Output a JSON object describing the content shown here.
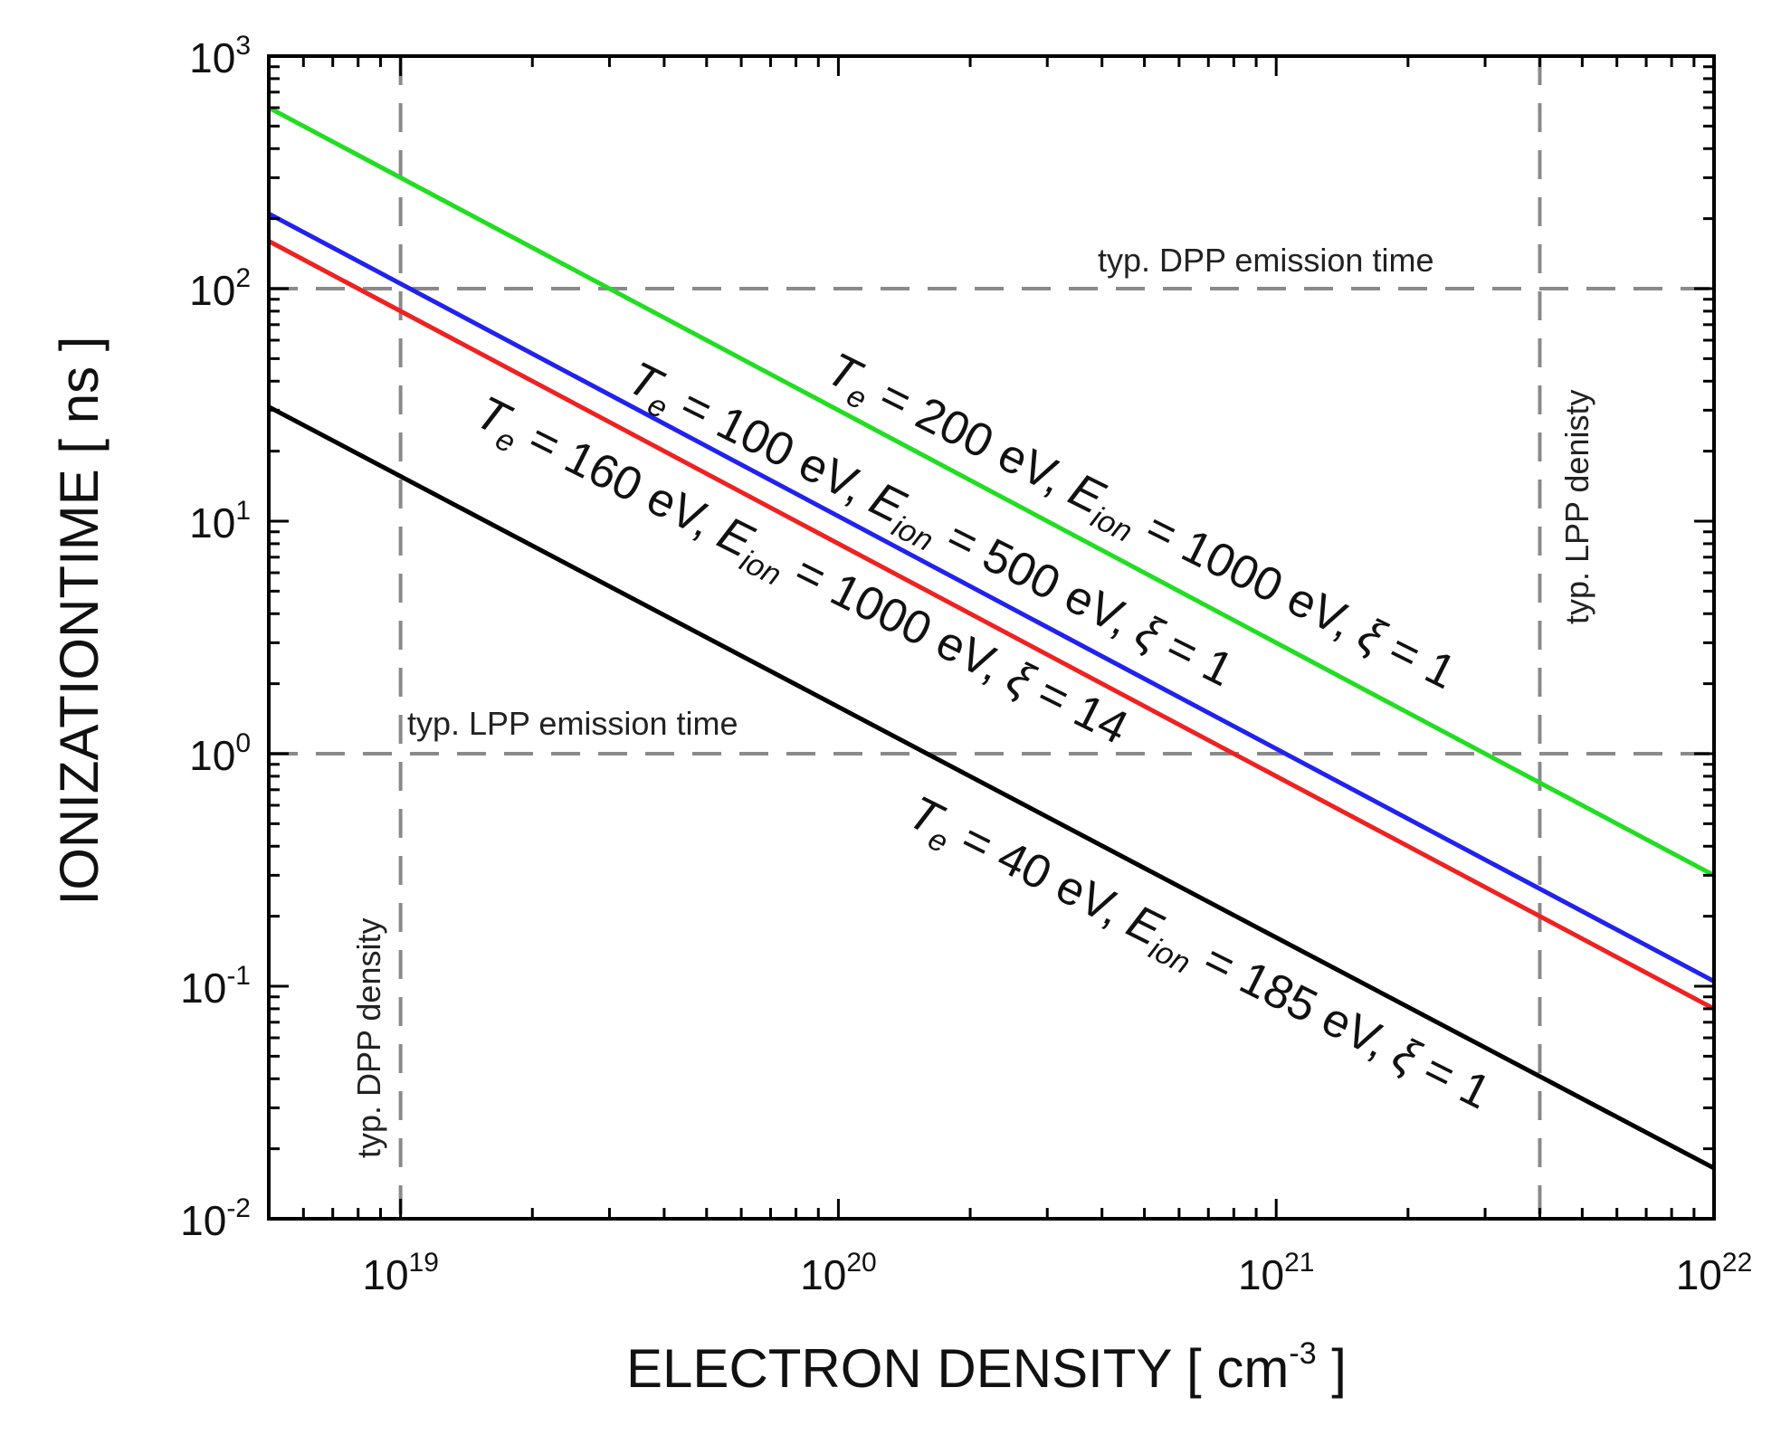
{
  "chart_data": {
    "type": "line",
    "scale": {
      "x": "log",
      "y": "log"
    },
    "xlabel": {
      "text": "ELECTRON DENSITY [ cm",
      "exponent": "-3",
      "suffix": " ]"
    },
    "ylabel": "IONIZATIONTIME [ ns ]",
    "xlim": [
      5e+18,
      1e+22
    ],
    "ylim": [
      0.01,
      1000
    ],
    "x_ticks": [
      {
        "value": 1e+19,
        "base": "10",
        "exp": "19"
      },
      {
        "value": 1e+20,
        "base": "10",
        "exp": "20"
      },
      {
        "value": 1e+21,
        "base": "10",
        "exp": "21"
      },
      {
        "value": 1e+22,
        "base": "10",
        "exp": "22"
      }
    ],
    "y_ticks": [
      {
        "value": 0.01,
        "base": "10",
        "exp": "-2"
      },
      {
        "value": 0.1,
        "base": "10",
        "exp": "-1"
      },
      {
        "value": 1,
        "base": "10",
        "exp": "0"
      },
      {
        "value": 10,
        "base": "10",
        "exp": "1"
      },
      {
        "value": 100,
        "base": "10",
        "exp": "2"
      },
      {
        "value": 1000,
        "base": "10",
        "exp": "3"
      }
    ],
    "series": [
      {
        "name": "Te = 200 eV, Eion = 1000 eV, xi = 1",
        "color": "#22dd22",
        "x": [
          5e+18,
          1e+22
        ],
        "y": [
          600,
          0.3
        ],
        "label": {
          "T": "T",
          "Tsub": "e",
          "t1": " = 200 eV, ",
          "E": "E",
          "Esub": "ion",
          "t2": " = 1000 eV, ",
          "xi": "ξ",
          "t3": " = 1"
        }
      },
      {
        "name": "Te = 100 eV, Eion = 500 eV, xi = 1",
        "color": "#2222ee",
        "x": [
          5e+18,
          1e+22
        ],
        "y": [
          210,
          0.105
        ],
        "label": {
          "T": "T",
          "Tsub": "e",
          "t1": " = 100 eV, ",
          "E": "E",
          "Esub": "ion",
          "t2": " = 500 eV, ",
          "xi": "ξ",
          "t3": " = 1"
        }
      },
      {
        "name": "Te = 160 eV, Eion = 1000 eV, xi = 14",
        "color": "#ee2222",
        "x": [
          5e+18,
          1e+22
        ],
        "y": [
          160,
          0.08
        ],
        "label": {
          "T": "T",
          "Tsub": "e",
          "t1": " = 160 eV, ",
          "E": "E",
          "Esub": "ion",
          "t2": " = 1000 eV, ",
          "xi": "ξ",
          "t3": " = 14"
        }
      },
      {
        "name": "Te = 40 eV, Eion = 185 eV, xi = 1",
        "color": "#000000",
        "x": [
          5e+18,
          1e+22
        ],
        "y": [
          31,
          0.0165
        ],
        "label": {
          "T": "T",
          "Tsub": "e",
          "t1": " = 40 eV, ",
          "E": "E",
          "Esub": "ion",
          "t2": " = 185 eV, ",
          "xi": "ξ",
          "t3": " = 1"
        }
      }
    ],
    "reference_lines": [
      {
        "axis": "y",
        "value": 100,
        "label": "typ. DPP emission time"
      },
      {
        "axis": "y",
        "value": 1,
        "label": "typ. LPP emission time"
      },
      {
        "axis": "x",
        "value": 1e+19,
        "label": "typ. DPP density"
      },
      {
        "axis": "x",
        "value": 4e+21,
        "label": "typ. LPP denisty"
      }
    ]
  }
}
